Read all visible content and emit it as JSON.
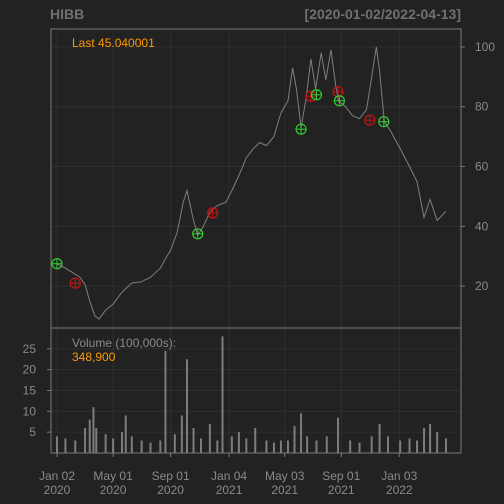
{
  "chart_data": {
    "type": "line",
    "symbol": "HIBB",
    "date_range_label": "[2020-01-02/2022-04-13]",
    "date_start": "2020-01-02",
    "date_end": "2022-04-13",
    "theme": {
      "background": "#222222",
      "grid": "#2f2f2f",
      "border": "#7a7a7a",
      "line": "#7f7f7f",
      "volume_bar": "#7d7d7d",
      "label_accent": "#ff9900",
      "label_muted": "#8a8a8a",
      "buy_marker": "#33cc33",
      "sell_marker": "#cc1111"
    },
    "last_label": "Last 45.040001",
    "price_axis": {
      "ticks": [
        20,
        40,
        60,
        80,
        100
      ],
      "range": [
        6,
        106
      ],
      "side": "right"
    },
    "price_series": [
      {
        "date": "2020-01-02",
        "close": 27.5
      },
      {
        "date": "2020-01-20",
        "close": 26
      },
      {
        "date": "2020-02-05",
        "close": 24.5
      },
      {
        "date": "2020-02-20",
        "close": 23
      },
      {
        "date": "2020-03-02",
        "close": 20.5
      },
      {
        "date": "2020-03-12",
        "close": 15
      },
      {
        "date": "2020-03-23",
        "close": 10
      },
      {
        "date": "2020-04-01",
        "close": 9
      },
      {
        "date": "2020-04-15",
        "close": 12
      },
      {
        "date": "2020-05-01",
        "close": 14
      },
      {
        "date": "2020-05-20",
        "close": 18
      },
      {
        "date": "2020-06-10",
        "close": 21
      },
      {
        "date": "2020-07-01",
        "close": 21.5
      },
      {
        "date": "2020-07-20",
        "close": 23
      },
      {
        "date": "2020-08-10",
        "close": 26
      },
      {
        "date": "2020-08-24",
        "close": 30
      },
      {
        "date": "2020-09-01",
        "close": 32
      },
      {
        "date": "2020-09-15",
        "close": 38
      },
      {
        "date": "2020-09-28",
        "close": 48
      },
      {
        "date": "2020-10-06",
        "close": 52
      },
      {
        "date": "2020-10-20",
        "close": 42
      },
      {
        "date": "2020-10-29",
        "close": 37
      },
      {
        "date": "2020-11-10",
        "close": 40
      },
      {
        "date": "2020-11-25",
        "close": 45
      },
      {
        "date": "2020-12-10",
        "close": 47
      },
      {
        "date": "2020-12-28",
        "close": 48
      },
      {
        "date": "2021-01-10",
        "close": 52
      },
      {
        "date": "2021-01-25",
        "close": 57
      },
      {
        "date": "2021-02-10",
        "close": 63
      },
      {
        "date": "2021-02-25",
        "close": 66
      },
      {
        "date": "2021-03-10",
        "close": 68
      },
      {
        "date": "2021-03-25",
        "close": 67
      },
      {
        "date": "2021-04-10",
        "close": 70
      },
      {
        "date": "2021-04-25",
        "close": 78
      },
      {
        "date": "2021-05-10",
        "close": 82
      },
      {
        "date": "2021-05-20",
        "close": 93
      },
      {
        "date": "2021-05-28",
        "close": 86
      },
      {
        "date": "2021-06-07",
        "close": 73
      },
      {
        "date": "2021-06-18",
        "close": 83
      },
      {
        "date": "2021-06-28",
        "close": 96
      },
      {
        "date": "2021-07-08",
        "close": 86
      },
      {
        "date": "2021-07-20",
        "close": 98
      },
      {
        "date": "2021-07-30",
        "close": 89
      },
      {
        "date": "2021-08-10",
        "close": 99
      },
      {
        "date": "2021-08-20",
        "close": 87
      },
      {
        "date": "2021-08-26",
        "close": 82
      },
      {
        "date": "2021-09-10",
        "close": 80
      },
      {
        "date": "2021-09-25",
        "close": 77
      },
      {
        "date": "2021-10-10",
        "close": 76
      },
      {
        "date": "2021-10-25",
        "close": 79
      },
      {
        "date": "2021-11-05",
        "close": 90
      },
      {
        "date": "2021-11-15",
        "close": 100
      },
      {
        "date": "2021-11-22",
        "close": 92
      },
      {
        "date": "2021-12-02",
        "close": 75
      },
      {
        "date": "2021-12-15",
        "close": 72
      },
      {
        "date": "2022-01-05",
        "close": 66
      },
      {
        "date": "2022-01-25",
        "close": 60
      },
      {
        "date": "2022-02-10",
        "close": 55
      },
      {
        "date": "2022-02-25",
        "close": 43
      },
      {
        "date": "2022-03-10",
        "close": 49
      },
      {
        "date": "2022-03-25",
        "close": 42
      },
      {
        "date": "2022-04-13",
        "close": 45.04
      }
    ],
    "signals": [
      {
        "date": "2020-01-02",
        "price": 27.5,
        "type": "buy"
      },
      {
        "date": "2020-02-10",
        "price": 21,
        "type": "sell"
      },
      {
        "date": "2020-10-29",
        "price": 37.5,
        "type": "buy"
      },
      {
        "date": "2020-11-30",
        "price": 44.5,
        "type": "sell"
      },
      {
        "date": "2021-06-07",
        "price": 72.5,
        "type": "buy"
      },
      {
        "date": "2021-06-28",
        "price": 83.5,
        "type": "sell"
      },
      {
        "date": "2021-07-10",
        "price": 84,
        "type": "buy"
      },
      {
        "date": "2021-08-25",
        "price": 85,
        "type": "sell"
      },
      {
        "date": "2021-08-28",
        "price": 82,
        "type": "buy"
      },
      {
        "date": "2021-11-01",
        "price": 75.5,
        "type": "sell"
      },
      {
        "date": "2021-12-01",
        "price": 75,
        "type": "buy"
      }
    ],
    "volume_label": "Volume (100,000s):",
    "volume_last_label": "348,900",
    "volume_axis": {
      "ticks": [
        5,
        10,
        15,
        20,
        25
      ],
      "range": [
        0,
        30
      ],
      "side": "left"
    },
    "volume_series": [
      {
        "date": "2020-01-02",
        "value": 4
      },
      {
        "date": "2020-01-20",
        "value": 3.5
      },
      {
        "date": "2020-02-10",
        "value": 3
      },
      {
        "date": "2020-03-02",
        "value": 6
      },
      {
        "date": "2020-03-12",
        "value": 8
      },
      {
        "date": "2020-03-20",
        "value": 11
      },
      {
        "date": "2020-03-26",
        "value": 6
      },
      {
        "date": "2020-04-15",
        "value": 4.5
      },
      {
        "date": "2020-05-01",
        "value": 3.5
      },
      {
        "date": "2020-05-20",
        "value": 5
      },
      {
        "date": "2020-05-28",
        "value": 9
      },
      {
        "date": "2020-06-10",
        "value": 4
      },
      {
        "date": "2020-07-01",
        "value": 3
      },
      {
        "date": "2020-07-20",
        "value": 2.5
      },
      {
        "date": "2020-08-10",
        "value": 3
      },
      {
        "date": "2020-08-21",
        "value": 24.5
      },
      {
        "date": "2020-09-10",
        "value": 4.5
      },
      {
        "date": "2020-09-25",
        "value": 9
      },
      {
        "date": "2020-10-06",
        "value": 22.5
      },
      {
        "date": "2020-10-20",
        "value": 6
      },
      {
        "date": "2020-11-05",
        "value": 3.5
      },
      {
        "date": "2020-11-24",
        "value": 7
      },
      {
        "date": "2020-12-10",
        "value": 3
      },
      {
        "date": "2020-12-21",
        "value": 28
      },
      {
        "date": "2021-01-10",
        "value": 4
      },
      {
        "date": "2021-01-25",
        "value": 5
      },
      {
        "date": "2021-02-10",
        "value": 3.5
      },
      {
        "date": "2021-03-01",
        "value": 6
      },
      {
        "date": "2021-03-25",
        "value": 3
      },
      {
        "date": "2021-04-10",
        "value": 2.5
      },
      {
        "date": "2021-04-25",
        "value": 3
      },
      {
        "date": "2021-05-10",
        "value": 3
      },
      {
        "date": "2021-05-24",
        "value": 6.5
      },
      {
        "date": "2021-06-07",
        "value": 9.5
      },
      {
        "date": "2021-06-20",
        "value": 4
      },
      {
        "date": "2021-07-10",
        "value": 3
      },
      {
        "date": "2021-08-01",
        "value": 4
      },
      {
        "date": "2021-08-25",
        "value": 8.5
      },
      {
        "date": "2021-09-20",
        "value": 3
      },
      {
        "date": "2021-10-10",
        "value": 2.5
      },
      {
        "date": "2021-11-05",
        "value": 4
      },
      {
        "date": "2021-11-22",
        "value": 7
      },
      {
        "date": "2021-12-10",
        "value": 4
      },
      {
        "date": "2022-01-05",
        "value": 3
      },
      {
        "date": "2022-01-25",
        "value": 3.5
      },
      {
        "date": "2022-02-10",
        "value": 3
      },
      {
        "date": "2022-02-25",
        "value": 6
      },
      {
        "date": "2022-03-10",
        "value": 7
      },
      {
        "date": "2022-03-25",
        "value": 5
      },
      {
        "date": "2022-04-13",
        "value": 3.5
      }
    ],
    "x_axis_ticks": [
      {
        "date": "2020-01-02",
        "line1": "Jan 02",
        "line2": "2020"
      },
      {
        "date": "2020-05-01",
        "line1": "May 01",
        "line2": "2020"
      },
      {
        "date": "2020-09-01",
        "line1": "Sep 01",
        "line2": "2020"
      },
      {
        "date": "2021-01-04",
        "line1": "Jan 04",
        "line2": "2021"
      },
      {
        "date": "2021-05-03",
        "line1": "May 03",
        "line2": "2021"
      },
      {
        "date": "2021-09-01",
        "line1": "Sep 01",
        "line2": "2021"
      },
      {
        "date": "2022-01-03",
        "line1": "Jan 03",
        "line2": "2022"
      }
    ]
  }
}
